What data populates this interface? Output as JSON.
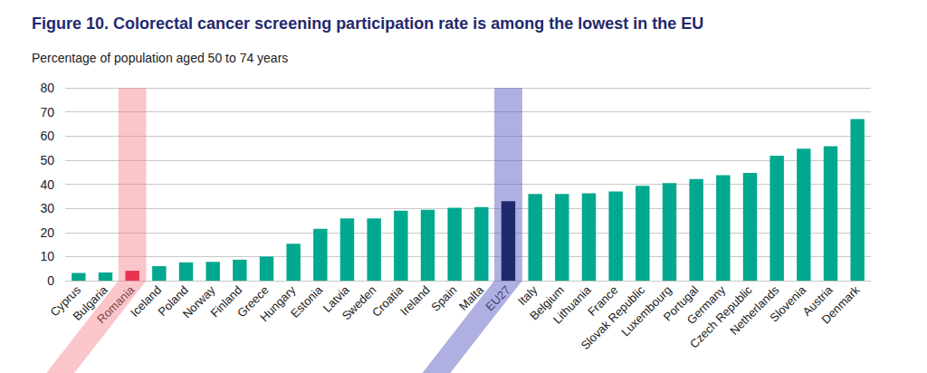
{
  "chart_data": {
    "type": "bar",
    "title": "Figure 10. Colorectal cancer screening participation rate is among the lowest in the EU",
    "subtitle": "Percentage of population aged 50 to 74 years",
    "categories": [
      "Cyprus",
      "Bulgaria",
      "Romania",
      "Iceland",
      "Poland",
      "Norway",
      "Finland",
      "Greece",
      "Hungary",
      "Estonia",
      "Latvia",
      "Sweden",
      "Croatia",
      "Ireland",
      "Spain",
      "Malta",
      "EU27",
      "Italy",
      "Belgium",
      "Lithuania",
      "France",
      "Slovak Republic",
      "Luxembourg",
      "Portugal",
      "Germany",
      "Czech Republic",
      "Netherlands",
      "Slovenia",
      "Austria",
      "Denmark"
    ],
    "values": [
      3.2,
      3.4,
      4.1,
      6.0,
      7.6,
      7.8,
      8.7,
      10.0,
      15.3,
      21.5,
      25.8,
      25.8,
      29.0,
      29.4,
      30.2,
      30.5,
      33.0,
      36.0,
      36.0,
      36.2,
      37.0,
      39.3,
      40.5,
      42.2,
      43.8,
      44.7,
      51.8,
      54.7,
      55.8,
      67.0
    ],
    "color": "#00a88f",
    "colors": [
      "#00a88f",
      "#00a88f",
      "#e8344e",
      "#00a88f",
      "#00a88f",
      "#00a88f",
      "#00a88f",
      "#00a88f",
      "#00a88f",
      "#00a88f",
      "#00a88f",
      "#00a88f",
      "#00a88f",
      "#00a88f",
      "#00a88f",
      "#00a88f",
      "#1f2a6e",
      "#00a88f",
      "#00a88f",
      "#00a88f",
      "#00a88f",
      "#00a88f",
      "#00a88f",
      "#00a88f",
      "#00a88f",
      "#00a88f",
      "#00a88f",
      "#00a88f",
      "#00a88f",
      "#00a88f"
    ],
    "ylim": [
      0,
      80
    ],
    "yticks": [
      0,
      10,
      20,
      30,
      40,
      50,
      60,
      70,
      80
    ],
    "grid": true
  }
}
